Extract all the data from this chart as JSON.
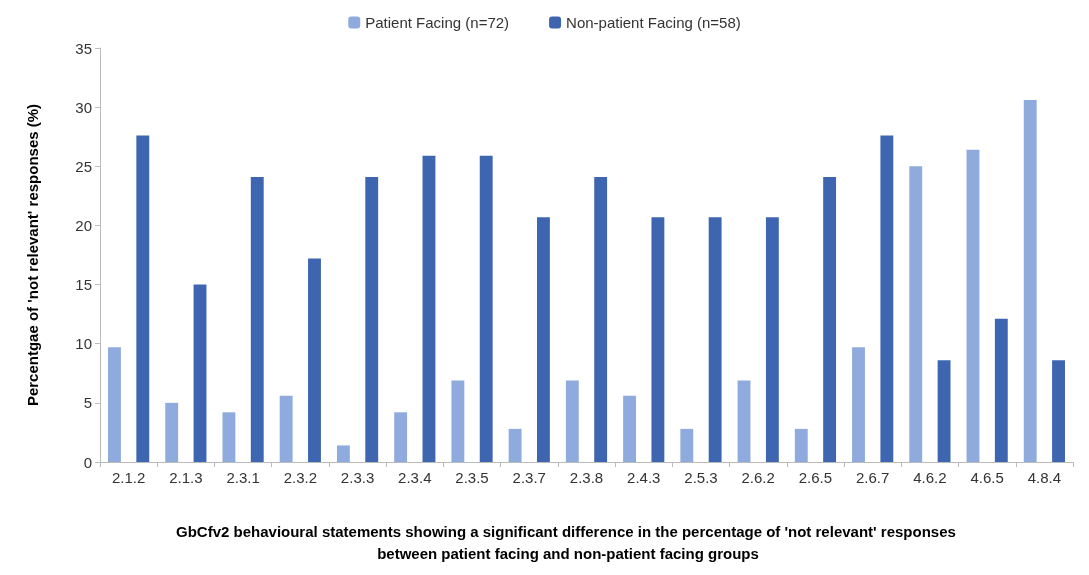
{
  "chart_data": {
    "type": "bar",
    "categories": [
      "2.1.2",
      "2.1.3",
      "2.3.1",
      "2.3.2",
      "2.3.3",
      "2.3.4",
      "2.3.5",
      "2.3.7",
      "2.3.8",
      "2.4.3",
      "2.5.3",
      "2.6.2",
      "2.6.5",
      "2.6.7",
      "4.6.2",
      "4.6.5",
      "4.8.4"
    ],
    "series": [
      {
        "name": "Patient Facing (n=72)",
        "color": "#8faadc",
        "values": [
          9.7,
          5.0,
          4.2,
          5.6,
          1.4,
          4.2,
          6.9,
          2.8,
          6.9,
          5.6,
          2.8,
          6.9,
          2.8,
          9.7,
          25.0,
          26.4,
          30.6
        ]
      },
      {
        "name": "Non-patient Facing (n=58)",
        "color": "#3d65b0",
        "values": [
          27.6,
          15.0,
          24.1,
          17.2,
          24.1,
          25.9,
          25.9,
          20.7,
          24.1,
          20.7,
          20.7,
          20.7,
          24.1,
          27.6,
          8.6,
          12.1,
          8.6
        ]
      }
    ],
    "ylim": [
      0,
      35
    ],
    "yticks": [
      0,
      5,
      10,
      15,
      20,
      25,
      30,
      35
    ],
    "ylabel": "Percentgae of 'not relevant' responses (%)",
    "xlabel": "GbCfv2 behavioural statements showing a significant difference in the percentage of 'not relevant' responses between patient facing and non-patient facing groups",
    "grid": false,
    "legend": "top"
  }
}
